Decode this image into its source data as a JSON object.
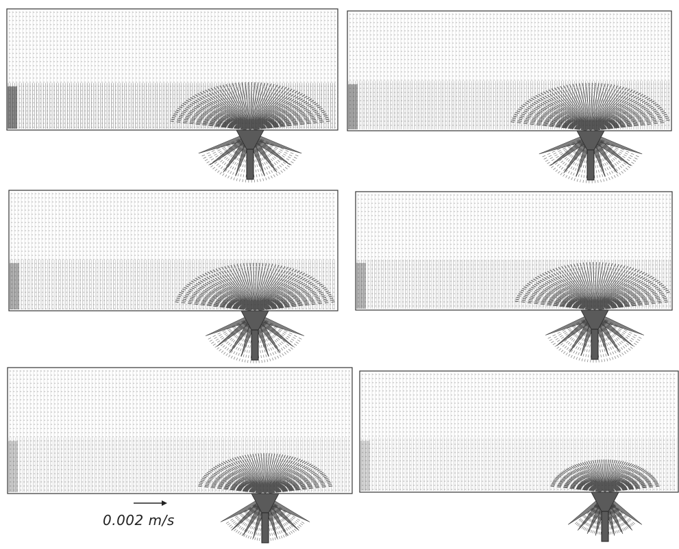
{
  "figure": {
    "panels": [
      {
        "id": "panel-1",
        "jet_side": "center-right",
        "lower_band_strength": 0.9,
        "plume_spread": 1.0
      },
      {
        "id": "panel-2",
        "jet_side": "center-right",
        "lower_band_strength": 0.55,
        "plume_spread": 1.0
      },
      {
        "id": "panel-3",
        "jet_side": "center-right",
        "lower_band_strength": 0.45,
        "plume_spread": 0.95
      },
      {
        "id": "panel-4",
        "jet_side": "center-right",
        "lower_band_strength": 0.4,
        "plume_spread": 0.95
      },
      {
        "id": "panel-5",
        "jet_side": "center-right",
        "lower_band_strength": 0.2,
        "plume_spread": 0.85
      },
      {
        "id": "panel-6",
        "jet_side": "center-right",
        "lower_band_strength": 0.1,
        "plume_spread": 0.7
      }
    ],
    "scale_reference": {
      "label": "0.002 m/s",
      "vector_icon": "right-arrow"
    },
    "colors": {
      "vector": "#555555",
      "vector_dark": "#3a3a3a",
      "nozzle": "#5a5a5a",
      "frame": "#333333"
    }
  }
}
